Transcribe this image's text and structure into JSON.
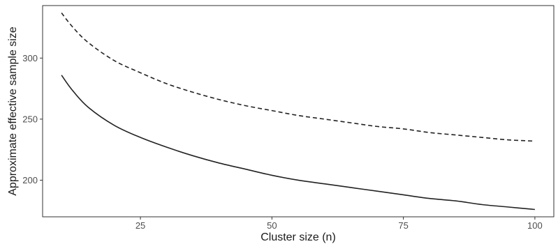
{
  "chart_data": {
    "type": "line",
    "title": "",
    "xlabel": "Cluster size (n)",
    "ylabel": "Approximate effective sample size",
    "xlim": [
      6.4,
      103.6
    ],
    "ylim": [
      170,
      343
    ],
    "x_ticks": [
      25,
      50,
      75,
      100
    ],
    "y_ticks": [
      200,
      250,
      300
    ],
    "grid": false,
    "legend": "none",
    "series": [
      {
        "linetype": "dashed",
        "color": "#222222",
        "x": [
          10,
          12,
          15,
          20,
          25,
          30,
          35,
          40,
          45,
          50,
          55,
          60,
          65,
          70,
          75,
          80,
          85,
          90,
          95,
          100
        ],
        "values": [
          337,
          326,
          313,
          298,
          288,
          279,
          272,
          266,
          261,
          257,
          253,
          250,
          247,
          244,
          242,
          239,
          237,
          235,
          233,
          232
        ]
      },
      {
        "linetype": "solid",
        "color": "#222222",
        "x": [
          10,
          12,
          15,
          20,
          25,
          30,
          35,
          40,
          45,
          50,
          55,
          60,
          65,
          70,
          75,
          80,
          85,
          90,
          95,
          100
        ],
        "values": [
          286,
          274,
          260,
          245,
          235,
          227,
          220,
          214,
          209,
          204,
          200,
          197,
          194,
          191,
          188,
          185,
          183,
          180,
          178,
          176
        ]
      }
    ]
  }
}
